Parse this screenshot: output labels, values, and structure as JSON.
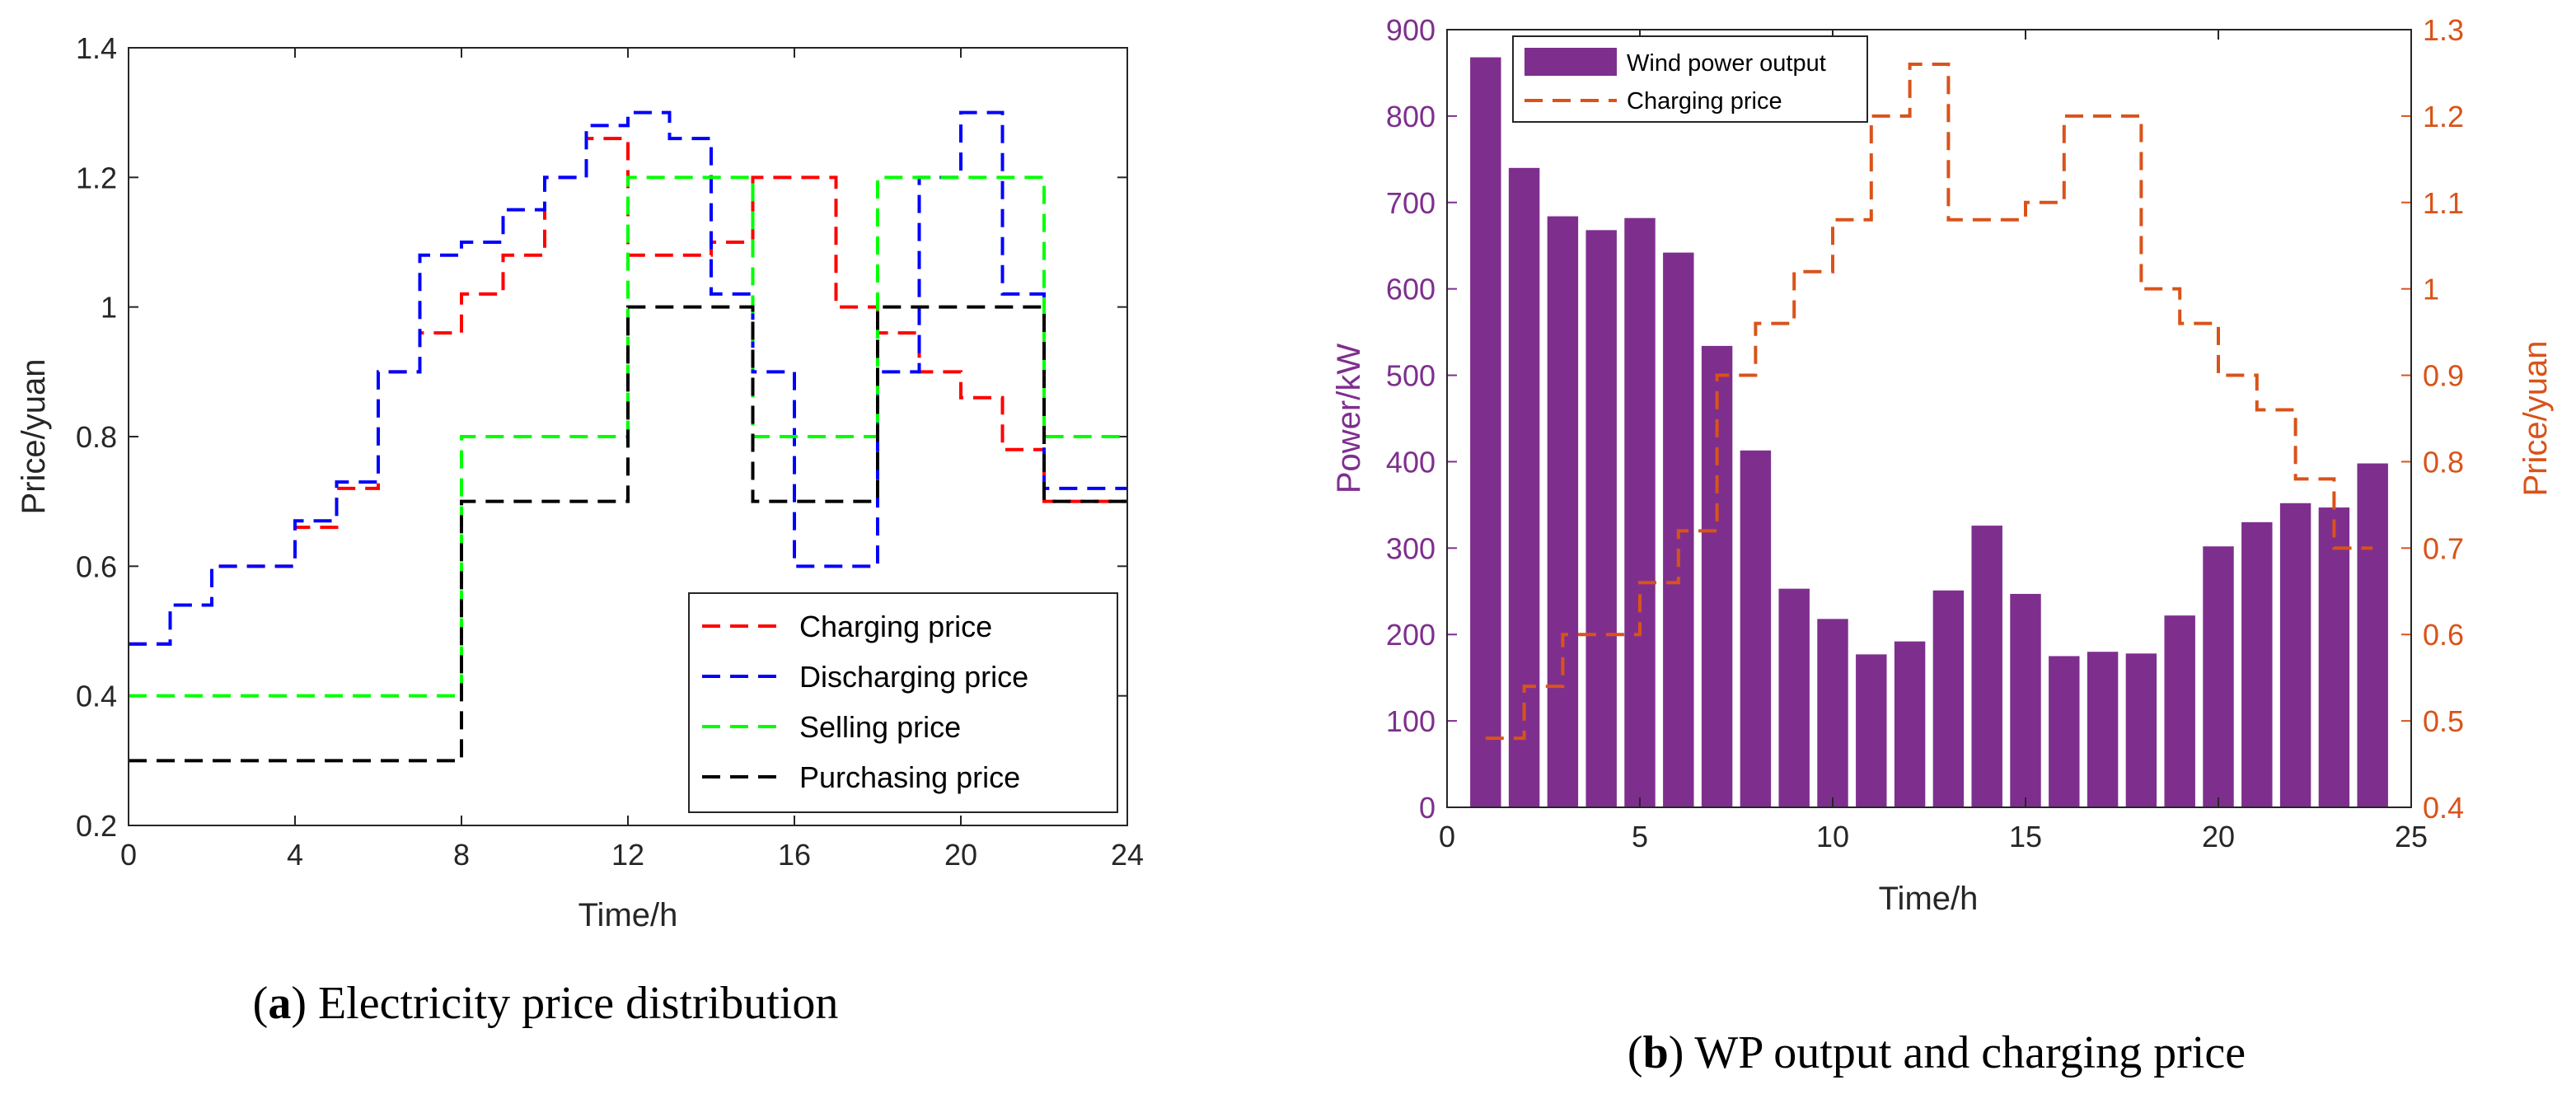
{
  "captions": {
    "a": {
      "letter": "a",
      "text": "Electricity price distribution"
    },
    "b": {
      "letter": "b",
      "text": "WP output and charging price"
    }
  },
  "chart_data": [
    {
      "type": "line",
      "style": "step",
      "title": "",
      "xlabel": "Time/h",
      "ylabel": "Price/yuan",
      "xlim": [
        0,
        24
      ],
      "ylim": [
        0.2,
        1.4
      ],
      "xticks": [
        0,
        4,
        8,
        12,
        16,
        20,
        24
      ],
      "yticks": [
        0.2,
        0.4,
        0.6,
        0.8,
        1.0,
        1.2,
        1.4
      ],
      "xtick_labels": [
        "0",
        "4",
        "8",
        "12",
        "16",
        "20",
        "24"
      ],
      "ytick_labels": [
        "0.2",
        "0.4",
        "0.6",
        "0.8",
        "1",
        "1.2",
        "1.4"
      ],
      "legend_position": "bottom-right",
      "x": [
        0,
        1,
        2,
        3,
        4,
        5,
        6,
        7,
        8,
        9,
        10,
        11,
        12,
        13,
        14,
        15,
        16,
        17,
        18,
        19,
        20,
        21,
        22,
        23,
        24
      ],
      "series": [
        {
          "name": "Charging price",
          "color": "#ff0000",
          "values": [
            0.48,
            0.54,
            0.6,
            0.6,
            0.66,
            0.72,
            0.9,
            0.96,
            1.02,
            1.08,
            1.2,
            1.26,
            1.08,
            1.08,
            1.1,
            1.2,
            1.2,
            1.0,
            0.96,
            0.9,
            0.86,
            0.78,
            0.7,
            0.7,
            0.7
          ]
        },
        {
          "name": "Discharging price",
          "color": "#0000ff",
          "values": [
            0.48,
            0.54,
            0.6,
            0.6,
            0.67,
            0.73,
            0.9,
            1.08,
            1.1,
            1.15,
            1.2,
            1.28,
            1.3,
            1.26,
            1.02,
            0.9,
            0.6,
            0.6,
            0.9,
            1.2,
            1.3,
            1.02,
            0.72,
            0.72,
            0.72
          ]
        },
        {
          "name": "Selling price",
          "color": "#00ff00",
          "values": [
            0.4,
            0.4,
            0.4,
            0.4,
            0.4,
            0.4,
            0.4,
            0.4,
            0.8,
            0.8,
            0.8,
            0.8,
            1.2,
            1.2,
            1.2,
            0.8,
            0.8,
            0.8,
            1.2,
            1.2,
            1.2,
            1.2,
            0.8,
            0.8,
            0.8
          ]
        },
        {
          "name": "Purchasing price",
          "color": "#000000",
          "values": [
            0.3,
            0.3,
            0.3,
            0.3,
            0.3,
            0.3,
            0.3,
            0.3,
            0.7,
            0.7,
            0.7,
            0.7,
            1.0,
            1.0,
            1.0,
            0.7,
            0.7,
            0.7,
            1.0,
            1.0,
            1.0,
            1.0,
            0.7,
            0.7,
            0.7
          ]
        }
      ]
    },
    {
      "type": "bar",
      "title": "",
      "xlabel": "Time/h",
      "ylabel": "Power/kW",
      "ylabel_right": "Price/yuan",
      "xlim": [
        0,
        25
      ],
      "ylim": [
        0,
        900
      ],
      "ylim_right": [
        0.4,
        1.3
      ],
      "xticks": [
        0,
        5,
        10,
        15,
        20,
        25
      ],
      "yticks": [
        0,
        100,
        200,
        300,
        400,
        500,
        600,
        700,
        800,
        900
      ],
      "yticks_right": [
        0.4,
        0.5,
        0.6,
        0.7,
        0.8,
        0.9,
        1.0,
        1.1,
        1.2,
        1.3
      ],
      "xtick_labels": [
        "0",
        "5",
        "10",
        "15",
        "20",
        "25"
      ],
      "ytick_labels": [
        "0",
        "100",
        "200",
        "300",
        "400",
        "500",
        "600",
        "700",
        "800",
        "900"
      ],
      "ytick_labels_right": [
        "0.4",
        "0.5",
        "0.6",
        "0.7",
        "0.8",
        "0.9",
        "1",
        "1.1",
        "1.2",
        "1.3"
      ],
      "legend_position": "top-left",
      "categories": [
        1,
        2,
        3,
        4,
        5,
        6,
        7,
        8,
        9,
        10,
        11,
        12,
        13,
        14,
        15,
        16,
        17,
        18,
        19,
        20,
        21,
        22,
        23,
        24
      ],
      "series": [
        {
          "name": "Wind power output",
          "axis": "left",
          "kind": "bar",
          "color": "#7e2f8e",
          "values": [
            868,
            740,
            684,
            668,
            682,
            642,
            534,
            413,
            253,
            218,
            177,
            192,
            251,
            326,
            247,
            175,
            180,
            178,
            222,
            302,
            330,
            352,
            347,
            398
          ]
        },
        {
          "name": "Charging price",
          "axis": "right",
          "kind": "step",
          "color": "#d95319",
          "x": [
            1,
            2,
            3,
            4,
            5,
            6,
            7,
            8,
            9,
            10,
            11,
            12,
            13,
            14,
            15,
            16,
            17,
            18,
            19,
            20,
            21,
            22,
            23,
            24
          ],
          "values": [
            0.48,
            0.54,
            0.6,
            0.6,
            0.66,
            0.72,
            0.9,
            0.96,
            1.02,
            1.08,
            1.2,
            1.26,
            1.08,
            1.08,
            1.1,
            1.2,
            1.2,
            1.0,
            0.96,
            0.9,
            0.86,
            0.78,
            0.7,
            0.7
          ]
        }
      ]
    }
  ]
}
